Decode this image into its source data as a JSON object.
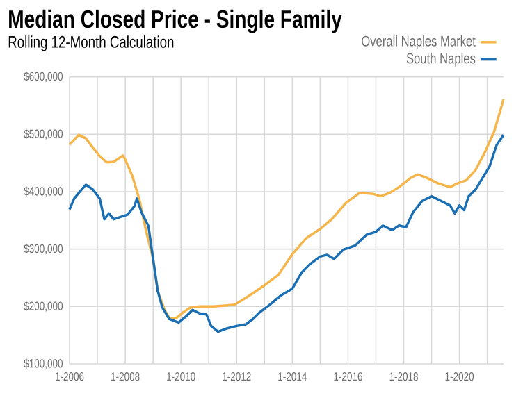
{
  "chart_data": {
    "type": "line",
    "title": "Median Closed Price - Single Family",
    "subtitle": "Rolling 12-Month Calculation",
    "xlim": [
      "2006-01",
      "2021-08"
    ],
    "ylim": [
      100000,
      600000
    ],
    "xticks": [
      {
        "value": "2006-01",
        "label": "1-2006"
      },
      {
        "value": "2007-01",
        "label": null
      },
      {
        "value": "2008-01",
        "label": "1-2008"
      },
      {
        "value": "2009-01",
        "label": null
      },
      {
        "value": "2010-01",
        "label": "1-2010"
      },
      {
        "value": "2011-01",
        "label": null
      },
      {
        "value": "2012-01",
        "label": "1-2012"
      },
      {
        "value": "2013-01",
        "label": null
      },
      {
        "value": "2014-01",
        "label": "1-2014"
      },
      {
        "value": "2015-01",
        "label": null
      },
      {
        "value": "2016-01",
        "label": "1-2016"
      },
      {
        "value": "2017-01",
        "label": null
      },
      {
        "value": "2018-01",
        "label": "1-2018"
      },
      {
        "value": "2019-01",
        "label": null
      },
      {
        "value": "2020-01",
        "label": "1-2020"
      },
      {
        "value": "2021-01",
        "label": null
      }
    ],
    "yticks": [
      {
        "value": 100000,
        "label": "$100,000"
      },
      {
        "value": 200000,
        "label": "$200,000"
      },
      {
        "value": 300000,
        "label": "$300,000"
      },
      {
        "value": 400000,
        "label": "$400,000"
      },
      {
        "value": 500000,
        "label": "$500,000"
      },
      {
        "value": 600000,
        "label": "$600,000"
      }
    ],
    "grid": true,
    "legend": "top right",
    "marker": "none",
    "line_style": "solid",
    "series": [
      {
        "name": "Overall Naples Market",
        "color": "#f5b54a",
        "x": [
          "2006-01",
          "2006-05",
          "2006-08",
          "2006-11",
          "2007-02",
          "2007-05",
          "2007-08",
          "2007-12",
          "2008-01",
          "2008-04",
          "2008-07",
          "2008-10",
          "2009-01",
          "2009-03",
          "2009-06",
          "2009-08",
          "2009-11",
          "2010-02",
          "2010-05",
          "2010-09",
          "2011-03",
          "2011-09",
          "2011-12",
          "2012-03",
          "2012-08",
          "2013-01",
          "2013-07",
          "2014-01",
          "2014-07",
          "2015-01",
          "2015-06",
          "2015-12",
          "2016-06",
          "2016-12",
          "2017-03",
          "2017-07",
          "2017-11",
          "2018-04",
          "2018-07",
          "2018-11",
          "2019-04",
          "2019-09",
          "2019-12",
          "2020-04",
          "2020-08",
          "2020-12",
          "2021-04",
          "2021-08"
        ],
        "values": [
          482000,
          499000,
          493000,
          477000,
          462000,
          451000,
          452000,
          463000,
          456000,
          428000,
          388000,
          331000,
          283000,
          227000,
          194000,
          180000,
          180000,
          190000,
          198000,
          200000,
          200000,
          202000,
          203000,
          210000,
          223000,
          237000,
          255000,
          291000,
          319000,
          335000,
          352000,
          380000,
          398000,
          396000,
          392000,
          398000,
          408000,
          424000,
          430000,
          424000,
          414000,
          408000,
          414000,
          420000,
          438000,
          469000,
          505000,
          561000
        ]
      },
      {
        "name": "South Naples",
        "color": "#1a6fb4",
        "x": [
          "2006-01",
          "2006-03",
          "2006-05",
          "2006-08",
          "2006-11",
          "2007-02",
          "2007-04",
          "2007-06",
          "2007-08",
          "2007-11",
          "2008-02",
          "2008-05",
          "2008-06",
          "2008-08",
          "2008-11",
          "2009-01",
          "2009-03",
          "2009-05",
          "2009-08",
          "2009-12",
          "2010-03",
          "2010-06",
          "2010-09",
          "2010-12",
          "2011-02",
          "2011-05",
          "2011-09",
          "2012-01",
          "2012-05",
          "2012-08",
          "2012-11",
          "2013-03",
          "2013-08",
          "2014-01",
          "2014-05",
          "2014-09",
          "2015-01",
          "2015-04",
          "2015-07",
          "2015-11",
          "2016-04",
          "2016-09",
          "2017-01",
          "2017-04",
          "2017-08",
          "2017-11",
          "2018-02",
          "2018-05",
          "2018-09",
          "2019-01",
          "2019-05",
          "2019-09",
          "2019-11",
          "2020-01",
          "2020-03",
          "2020-05",
          "2020-08",
          "2020-11",
          "2021-02",
          "2021-05",
          "2021-08"
        ],
        "values": [
          369000,
          388000,
          398000,
          412000,
          404000,
          388000,
          352000,
          362000,
          352000,
          356000,
          360000,
          375000,
          388000,
          364000,
          340000,
          283000,
          227000,
          198000,
          178000,
          172000,
          182000,
          194000,
          188000,
          186000,
          166000,
          156000,
          162000,
          166000,
          169000,
          178000,
          190000,
          202000,
          219000,
          231000,
          259000,
          275000,
          287000,
          290000,
          283000,
          299000,
          306000,
          325000,
          330000,
          341000,
          333000,
          341000,
          338000,
          364000,
          384000,
          392000,
          384000,
          376000,
          362000,
          376000,
          368000,
          392000,
          404000,
          424000,
          444000,
          481000,
          499000
        ]
      }
    ]
  }
}
